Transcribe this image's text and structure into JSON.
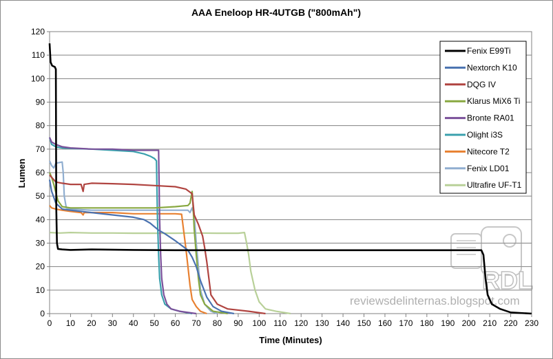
{
  "chart_data": {
    "type": "line",
    "title": "AAA Eneloop HR-4UTGB (\"800mAh\")",
    "xlabel": "Time (Minutes)",
    "ylabel": "Lumen",
    "xlim": [
      0,
      230
    ],
    "ylim": [
      0,
      120
    ],
    "xticks": [
      0,
      10,
      20,
      30,
      40,
      50,
      60,
      70,
      80,
      90,
      100,
      110,
      120,
      130,
      140,
      150,
      160,
      170,
      180,
      190,
      200,
      210,
      220,
      230
    ],
    "yticks": [
      0,
      10,
      20,
      30,
      40,
      50,
      60,
      70,
      80,
      90,
      100,
      110,
      120
    ],
    "grid": "horizontal",
    "legend_position": "right",
    "series": [
      {
        "name": "Fenix E99Ti",
        "color": "#000000",
        "width": 2.6,
        "points": [
          [
            0,
            115
          ],
          [
            0.5,
            107
          ],
          [
            1.2,
            105.5
          ],
          [
            2.5,
            105
          ],
          [
            3,
            104
          ],
          [
            3.2,
            45
          ],
          [
            3.5,
            30
          ],
          [
            4,
            27.5
          ],
          [
            6,
            27.3
          ],
          [
            10,
            27.1
          ],
          [
            20,
            27.3
          ],
          [
            30,
            27.2
          ],
          [
            40,
            27.1
          ],
          [
            60,
            27
          ],
          [
            100,
            27
          ],
          [
            150,
            27
          ],
          [
            200,
            27
          ],
          [
            206,
            27
          ],
          [
            207,
            25
          ],
          [
            208,
            15
          ],
          [
            209,
            8
          ],
          [
            211,
            4
          ],
          [
            215,
            2
          ],
          [
            220,
            0.5
          ],
          [
            230,
            0
          ]
        ]
      },
      {
        "name": "Nextorch K10",
        "color": "#4a72b0",
        "width": 2.2,
        "points": [
          [
            0,
            57
          ],
          [
            1,
            52
          ],
          [
            3,
            47
          ],
          [
            6,
            44.5
          ],
          [
            10,
            44
          ],
          [
            20,
            43
          ],
          [
            30,
            42
          ],
          [
            40,
            41
          ],
          [
            45,
            40
          ],
          [
            48,
            38.5
          ],
          [
            50,
            37
          ],
          [
            52,
            35.5
          ],
          [
            55,
            34
          ],
          [
            60,
            31
          ],
          [
            63,
            29
          ],
          [
            66,
            27
          ],
          [
            68,
            24
          ],
          [
            70,
            20
          ],
          [
            72,
            14
          ],
          [
            75,
            7
          ],
          [
            78,
            3
          ],
          [
            82,
            1
          ],
          [
            88,
            0
          ]
        ]
      },
      {
        "name": "DQG IV",
        "color": "#b04440",
        "width": 2.2,
        "points": [
          [
            0,
            59
          ],
          [
            1,
            58
          ],
          [
            3,
            56
          ],
          [
            6,
            55.5
          ],
          [
            10,
            55
          ],
          [
            15,
            55
          ],
          [
            16,
            52
          ],
          [
            16.5,
            55
          ],
          [
            20,
            55.5
          ],
          [
            30,
            55.3
          ],
          [
            40,
            55
          ],
          [
            50,
            54.5
          ],
          [
            60,
            54
          ],
          [
            65,
            53
          ],
          [
            68,
            51
          ],
          [
            69,
            42
          ],
          [
            71,
            38
          ],
          [
            73,
            33
          ],
          [
            74,
            28
          ],
          [
            75,
            22
          ],
          [
            76,
            15
          ],
          [
            77,
            8
          ],
          [
            80,
            4
          ],
          [
            85,
            2
          ],
          [
            95,
            1
          ],
          [
            103,
            0
          ]
        ]
      },
      {
        "name": "Klarus MiX6 Ti",
        "color": "#88a840",
        "width": 2.2,
        "points": [
          [
            0,
            60
          ],
          [
            1,
            58
          ],
          [
            2,
            55
          ],
          [
            4,
            48
          ],
          [
            6,
            45.5
          ],
          [
            10,
            45
          ],
          [
            20,
            45
          ],
          [
            30,
            45
          ],
          [
            40,
            45
          ],
          [
            50,
            45
          ],
          [
            60,
            45.5
          ],
          [
            66,
            46
          ],
          [
            67,
            47
          ],
          [
            68,
            52
          ],
          [
            68.5,
            45
          ],
          [
            69,
            36
          ],
          [
            70,
            25
          ],
          [
            71,
            15
          ],
          [
            72,
            8
          ],
          [
            74,
            4
          ],
          [
            78,
            1
          ],
          [
            85,
            0
          ]
        ]
      },
      {
        "name": "Bronte RA01",
        "color": "#7a509a",
        "width": 2.2,
        "points": [
          [
            0,
            75
          ],
          [
            1,
            73
          ],
          [
            3,
            72
          ],
          [
            6,
            71
          ],
          [
            10,
            70.5
          ],
          [
            20,
            70
          ],
          [
            30,
            70
          ],
          [
            40,
            69.5
          ],
          [
            50,
            69.5
          ],
          [
            52,
            69.5
          ],
          [
            52.5,
            40
          ],
          [
            53,
            25
          ],
          [
            53.5,
            15
          ],
          [
            54.5,
            8
          ],
          [
            56,
            4
          ],
          [
            58,
            2
          ],
          [
            62,
            1
          ],
          [
            70,
            0
          ]
        ]
      },
      {
        "name": "Olight i3S",
        "color": "#3aa0ad",
        "width": 2.2,
        "points": [
          [
            0,
            75
          ],
          [
            1,
            72
          ],
          [
            3,
            71
          ],
          [
            6,
            70.5
          ],
          [
            10,
            70.3
          ],
          [
            20,
            70
          ],
          [
            30,
            69.5
          ],
          [
            40,
            69
          ],
          [
            45,
            68
          ],
          [
            48,
            67
          ],
          [
            50,
            66
          ],
          [
            51,
            65
          ],
          [
            51.5,
            40
          ],
          [
            52,
            25
          ],
          [
            52.5,
            15
          ],
          [
            53.5,
            8
          ],
          [
            55,
            4
          ],
          [
            58,
            2
          ],
          [
            62,
            1
          ],
          [
            68,
            0
          ]
        ]
      },
      {
        "name": "Nitecore T2",
        "color": "#e88030",
        "width": 2.2,
        "points": [
          [
            0,
            46
          ],
          [
            1,
            45
          ],
          [
            3,
            44.5
          ],
          [
            6,
            44
          ],
          [
            10,
            43.5
          ],
          [
            15,
            43
          ],
          [
            16,
            42
          ],
          [
            16.5,
            43
          ],
          [
            20,
            43
          ],
          [
            30,
            43
          ],
          [
            40,
            42.5
          ],
          [
            50,
            42.5
          ],
          [
            60,
            42.5
          ],
          [
            63,
            42.3
          ],
          [
            64,
            35
          ],
          [
            65,
            28
          ],
          [
            66,
            20
          ],
          [
            67,
            12
          ],
          [
            68,
            6
          ],
          [
            70,
            3
          ],
          [
            72,
            1
          ],
          [
            75,
            0
          ]
        ]
      },
      {
        "name": "Fenix LD01",
        "color": "#90aed0",
        "width": 2.2,
        "points": [
          [
            0,
            65
          ],
          [
            1,
            63
          ],
          [
            2,
            62
          ],
          [
            3,
            64
          ],
          [
            6,
            64.5
          ],
          [
            6.5,
            60
          ],
          [
            7,
            50
          ],
          [
            8,
            45
          ],
          [
            10,
            44.5
          ],
          [
            20,
            44
          ],
          [
            30,
            44
          ],
          [
            40,
            44
          ],
          [
            50,
            44
          ],
          [
            60,
            44
          ],
          [
            66,
            44
          ],
          [
            67,
            43
          ],
          [
            68,
            45
          ],
          [
            69,
            42
          ],
          [
            70,
            30
          ],
          [
            71,
            20
          ],
          [
            72,
            10
          ],
          [
            74,
            4
          ],
          [
            77,
            1
          ],
          [
            80,
            0
          ]
        ]
      },
      {
        "name": "Ultrafire UF-T1",
        "color": "#b8d098",
        "width": 2.2,
        "points": [
          [
            0,
            34.5
          ],
          [
            5,
            34.3
          ],
          [
            10,
            34.5
          ],
          [
            20,
            34.3
          ],
          [
            30,
            34.3
          ],
          [
            40,
            34.2
          ],
          [
            50,
            34.2
          ],
          [
            60,
            34.2
          ],
          [
            70,
            34.3
          ],
          [
            80,
            34.2
          ],
          [
            90,
            34.2
          ],
          [
            93,
            34.5
          ],
          [
            94,
            30
          ],
          [
            95,
            25
          ],
          [
            96,
            18
          ],
          [
            98,
            10
          ],
          [
            100,
            5
          ],
          [
            103,
            2
          ],
          [
            108,
            1
          ],
          [
            115,
            0
          ]
        ]
      }
    ]
  },
  "watermark": {
    "logo_text": "RDL",
    "url_text": "reviewsdelinternas.blogspot.com"
  }
}
